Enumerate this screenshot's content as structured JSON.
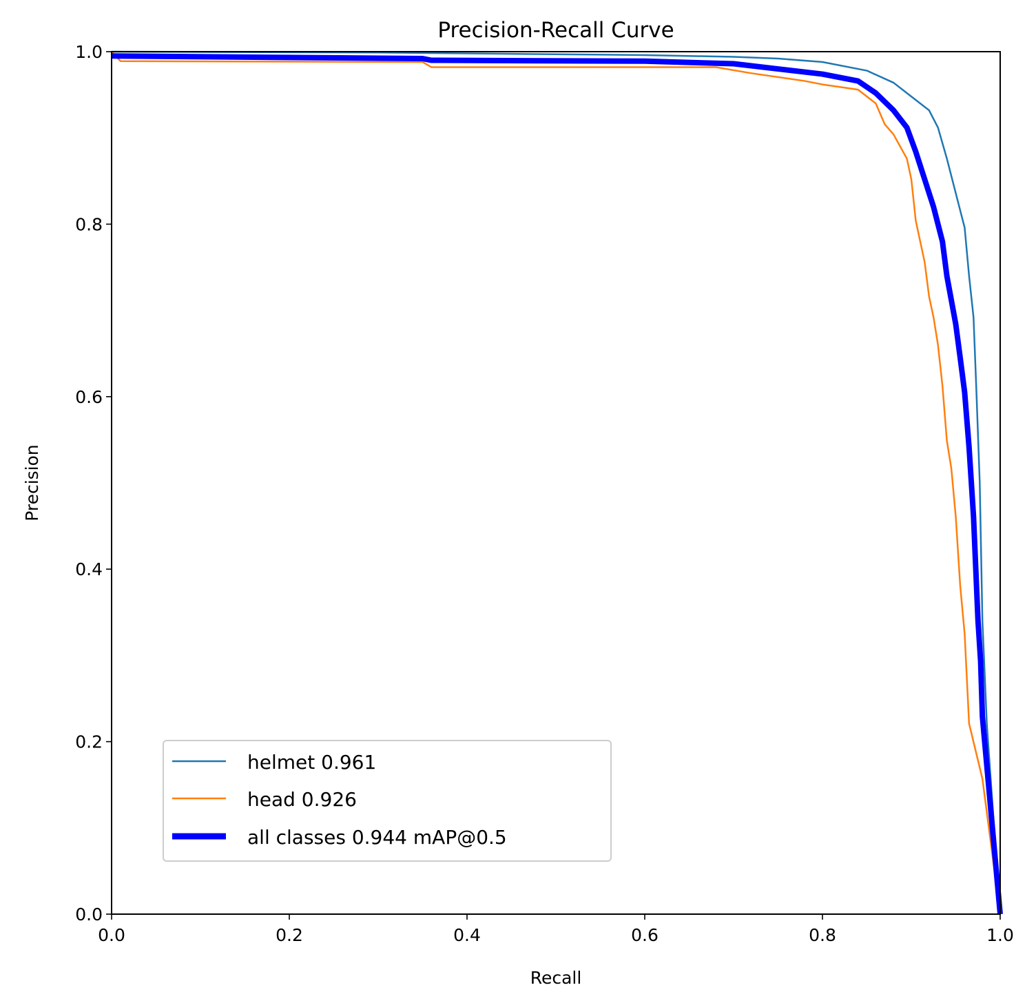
{
  "chart_data": {
    "type": "line",
    "title": "Precision-Recall Curve",
    "xlabel": "Recall",
    "ylabel": "Precision",
    "xlim": [
      0,
      1
    ],
    "ylim": [
      0,
      1
    ],
    "grid": false,
    "legend_placement": "lower-left",
    "xticks": [
      "0.0",
      "0.2",
      "0.4",
      "0.6",
      "0.8",
      "1.0"
    ],
    "yticks": [
      "0.0",
      "0.2",
      "0.4",
      "0.6",
      "0.8",
      "1.0"
    ],
    "series": [
      {
        "name": "helmet 0.961",
        "color": "#1f77b4",
        "x": [
          0,
          0.3,
          0.5,
          0.6,
          0.7,
          0.75,
          0.8,
          0.85,
          0.88,
          0.9,
          0.92,
          0.93,
          0.94,
          0.95,
          0.96,
          0.965,
          0.97,
          0.973,
          0.977,
          0.98,
          0.985,
          1.0
        ],
        "y": [
          1.0,
          0.999,
          0.997,
          0.996,
          0.994,
          0.992,
          0.988,
          0.978,
          0.964,
          0.948,
          0.932,
          0.912,
          0.876,
          0.836,
          0.796,
          0.74,
          0.692,
          0.613,
          0.5,
          0.34,
          0.22,
          0.0
        ]
      },
      {
        "name": "head 0.926",
        "color": "#ff7f0e",
        "x": [
          0,
          0.01,
          0.35,
          0.36,
          0.68,
          0.72,
          0.78,
          0.8,
          0.84,
          0.86,
          0.87,
          0.88,
          0.895,
          0.9,
          0.905,
          0.915,
          0.92,
          0.925,
          0.93,
          0.935,
          0.94,
          0.945,
          0.95,
          0.955,
          0.96,
          0.965,
          0.98,
          1.0
        ],
        "y": [
          1.0,
          0.989,
          0.988,
          0.982,
          0.982,
          0.975,
          0.966,
          0.962,
          0.956,
          0.94,
          0.916,
          0.904,
          0.876,
          0.852,
          0.804,
          0.756,
          0.716,
          0.692,
          0.66,
          0.613,
          0.549,
          0.517,
          0.461,
          0.381,
          0.325,
          0.221,
          0.157,
          0.0
        ]
      },
      {
        "name": "all classes 0.944 mAP@0.5",
        "color": "#0000ff",
        "x": [
          0,
          0.35,
          0.36,
          0.6,
          0.7,
          0.75,
          0.8,
          0.84,
          0.86,
          0.88,
          0.895,
          0.905,
          0.915,
          0.925,
          0.935,
          0.94,
          0.95,
          0.955,
          0.96,
          0.965,
          0.97,
          0.975,
          0.978,
          0.98,
          1.0
        ],
        "y": [
          0.995,
          0.992,
          0.99,
          0.989,
          0.986,
          0.98,
          0.974,
          0.966,
          0.952,
          0.932,
          0.912,
          0.884,
          0.852,
          0.82,
          0.78,
          0.74,
          0.684,
          0.645,
          0.605,
          0.541,
          0.461,
          0.341,
          0.293,
          0.229,
          0.0
        ]
      }
    ]
  }
}
